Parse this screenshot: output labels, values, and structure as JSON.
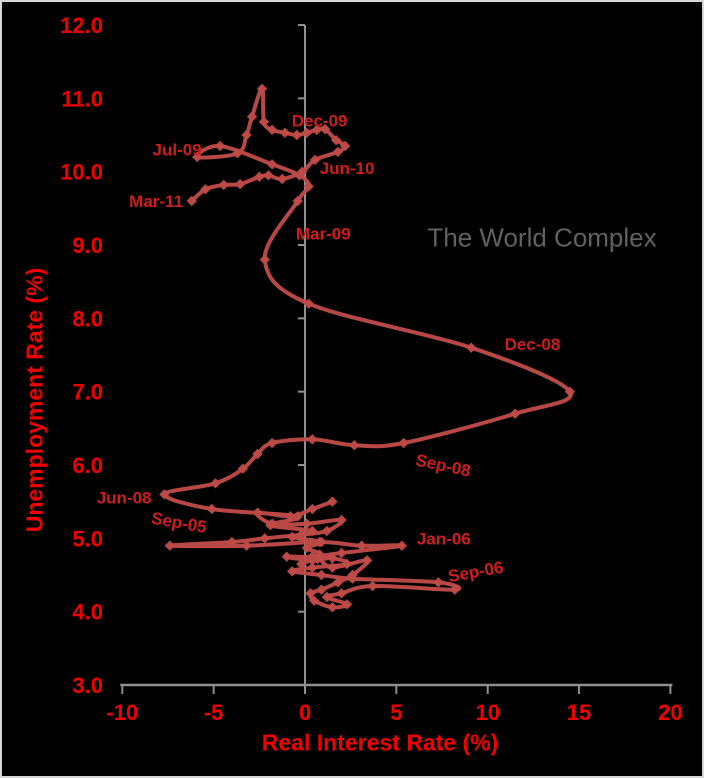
{
  "watermark": "The World Complex",
  "chart_data": {
    "type": "line",
    "title": "",
    "xlabel": "Real Interest Rate (%)",
    "ylabel": "Unemployment Rate (%)",
    "xlim": [
      -10,
      20
    ],
    "ylim": [
      3,
      12
    ],
    "x_ticks": [
      -10,
      -5,
      0,
      5,
      10,
      15,
      20
    ],
    "x_tick_labels": [
      "-10",
      "-5",
      "0",
      "5",
      "10",
      "15",
      "20"
    ],
    "y_ticks": [
      3,
      4,
      5,
      6,
      7,
      8,
      9,
      10,
      11,
      12
    ],
    "y_tick_labels": [
      "3.0",
      "4.0",
      "5.0",
      "6.0",
      "7.0",
      "8.0",
      "9.0",
      "10.0",
      "11.0",
      "12.0"
    ],
    "grid": false,
    "legend": "none",
    "series": [
      {
        "name": "unemployment-vs-real-interest-rate-phase-path",
        "marker": "diamond",
        "smooth": true,
        "points": [
          [
            1.5,
            5.5
          ],
          [
            0.4,
            5.4
          ],
          [
            -0.8,
            5.3
          ],
          [
            -2.6,
            5.35
          ],
          [
            -1.8,
            5.2
          ],
          [
            0.1,
            5.2
          ],
          [
            2.0,
            5.25
          ],
          [
            1.2,
            5.1
          ],
          [
            -0.2,
            5.05
          ],
          [
            -2.2,
            5.0
          ],
          [
            -4.0,
            4.95
          ],
          [
            -7.4,
            4.9
          ],
          [
            -3.2,
            4.9
          ],
          [
            0.8,
            4.95
          ],
          [
            3.1,
            4.9
          ],
          [
            5.3,
            4.9
          ],
          [
            2.0,
            4.8
          ],
          [
            0.4,
            4.75
          ],
          [
            -1.0,
            4.75
          ],
          [
            0.4,
            4.7
          ],
          [
            1.5,
            4.73
          ],
          [
            2.3,
            4.65
          ],
          [
            0.4,
            4.6
          ],
          [
            -0.7,
            4.55
          ],
          [
            0.9,
            4.5
          ],
          [
            2.6,
            4.45
          ],
          [
            7.3,
            4.4
          ],
          [
            8.2,
            4.3
          ],
          [
            3.7,
            4.35
          ],
          [
            2.0,
            4.25
          ],
          [
            1.2,
            4.2
          ],
          [
            2.3,
            4.1
          ],
          [
            1.5,
            4.06
          ],
          [
            0.5,
            4.15
          ],
          [
            0.3,
            4.25
          ],
          [
            0.9,
            4.3
          ],
          [
            1.8,
            4.4
          ],
          [
            2.6,
            4.5
          ],
          [
            3.4,
            4.7
          ],
          [
            1.5,
            4.6
          ],
          [
            0.7,
            4.72
          ],
          [
            -0.2,
            4.65
          ],
          [
            0.8,
            4.78
          ],
          [
            0.1,
            4.87
          ],
          [
            0.9,
            4.95
          ],
          [
            -0.7,
            5.02
          ],
          [
            0.4,
            5.1
          ],
          [
            -1.9,
            5.18
          ],
          [
            -0.4,
            5.3
          ],
          [
            -5.1,
            5.4
          ],
          [
            -7.7,
            5.6
          ],
          [
            -4.9,
            5.75
          ],
          [
            -3.4,
            5.95
          ],
          [
            -2.6,
            6.15
          ],
          [
            -1.8,
            6.3
          ],
          [
            0.4,
            6.35
          ],
          [
            2.7,
            6.27
          ],
          [
            5.4,
            6.3
          ],
          [
            11.5,
            6.7
          ],
          [
            14.5,
            7.0
          ],
          [
            9.1,
            7.6
          ],
          [
            0.2,
            8.2
          ],
          [
            -2.2,
            8.8
          ],
          [
            -0.4,
            9.6
          ],
          [
            0.2,
            9.8
          ],
          [
            -0.3,
            9.95
          ],
          [
            -1.8,
            10.1
          ],
          [
            -4.65,
            10.35
          ],
          [
            -5.9,
            10.2
          ],
          [
            -3.7,
            10.25
          ],
          [
            -3.2,
            10.5
          ],
          [
            -2.9,
            10.75
          ],
          [
            -2.35,
            11.13
          ],
          [
            -2.25,
            10.68
          ],
          [
            -1.8,
            10.57
          ],
          [
            -1.1,
            10.53
          ],
          [
            -0.45,
            10.5
          ],
          [
            0.1,
            10.53
          ],
          [
            0.65,
            10.57
          ],
          [
            1.1,
            10.58
          ],
          [
            1.7,
            10.43
          ],
          [
            2.2,
            10.35
          ],
          [
            1.8,
            10.27
          ],
          [
            0.55,
            10.16
          ],
          [
            -0.15,
            10.0
          ],
          [
            -1.25,
            9.9
          ],
          [
            -2.0,
            9.95
          ],
          [
            -2.5,
            9.93
          ],
          [
            -3.55,
            9.83
          ],
          [
            -4.45,
            9.82
          ],
          [
            -5.45,
            9.76
          ],
          [
            -6.2,
            9.6
          ]
        ]
      }
    ],
    "annotations": [
      {
        "text": "Dec-09",
        "x": 0.8,
        "y": 10.7,
        "rot": 0,
        "point": [
          0.1,
          10.53
        ]
      },
      {
        "text": "Jul-09",
        "x": -7.0,
        "y": 10.3,
        "rot": 0,
        "point": [
          -4.65,
          10.35
        ]
      },
      {
        "text": "Jun-10",
        "x": 2.3,
        "y": 10.05,
        "rot": 0,
        "point": [
          0.55,
          10.16
        ]
      },
      {
        "text": "Mar-11",
        "x": -8.15,
        "y": 9.6,
        "rot": 0,
        "point": [
          -6.2,
          9.6
        ]
      },
      {
        "text": "Mar-09",
        "x": 1.0,
        "y": 9.16,
        "rot": 0,
        "point": [
          -0.4,
          9.6
        ]
      },
      {
        "text": "Dec-08",
        "x": 12.45,
        "y": 7.65,
        "rot": 0,
        "point": [
          9.1,
          7.6
        ]
      },
      {
        "text": "Sep-08",
        "x": 7.5,
        "y": 6.0,
        "rot": 12,
        "point": [
          5.4,
          6.3
        ]
      },
      {
        "text": "Jun-08",
        "x": -9.9,
        "y": 5.56,
        "rot": 0,
        "point": [
          -7.7,
          5.6
        ]
      },
      {
        "text": "Sep-05",
        "x": -6.95,
        "y": 5.22,
        "rot": 10,
        "point": [
          -7.4,
          4.9
        ]
      },
      {
        "text": "Jan-06",
        "x": 7.6,
        "y": 5.0,
        "rot": 0,
        "point": [
          5.3,
          4.9
        ]
      },
      {
        "text": "Sep-06",
        "x": 9.4,
        "y": 4.55,
        "rot": -10,
        "point": [
          7.3,
          4.4
        ]
      }
    ],
    "colors": {
      "background": "#000000",
      "line": "#be4b48",
      "marker": "#be4b48",
      "axis": "#8f8f8f",
      "tick_label": "#f20000",
      "axis_title": "#f20000",
      "annotation": "#cf1d1d",
      "watermark": "#616161"
    }
  }
}
